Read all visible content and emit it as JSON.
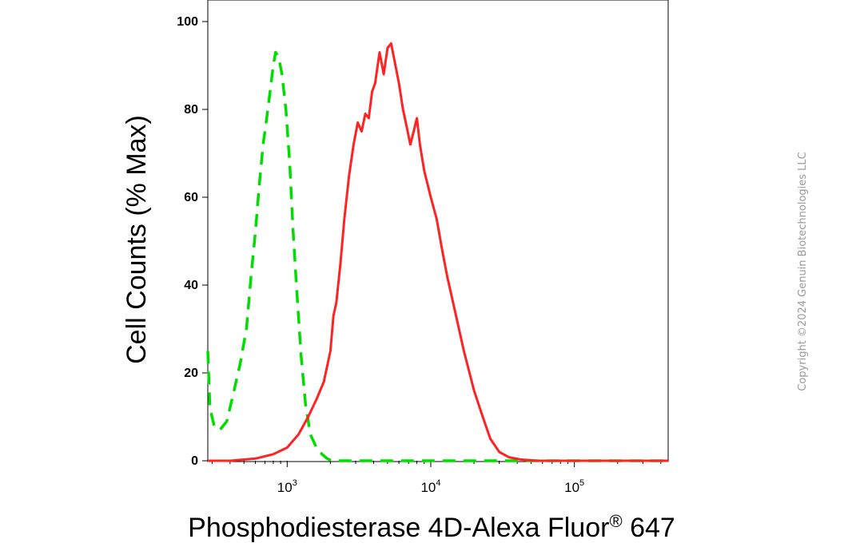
{
  "copyright": "Copyright ©2024 Genuin Biotechnologies LLC",
  "chart_data": {
    "type": "line",
    "xlabel_text": "Phosphodiesterase 4D-Alexa Fluor",
    "xlabel_sup": "®",
    "xlabel_suffix": " 647",
    "ylabel": "Cell Counts (% Max)",
    "xscale": "log",
    "xlim": [
      280,
      450000
    ],
    "ylim": [
      0,
      100
    ],
    "yticks": [
      0,
      20,
      40,
      60,
      80,
      100
    ],
    "xtick_labels": [
      {
        "value": 1000,
        "base": "10",
        "exp": "3"
      },
      {
        "value": 10000,
        "base": "10",
        "exp": "4"
      },
      {
        "value": 100000,
        "base": "10",
        "exp": "5"
      }
    ],
    "grid": false,
    "series": [
      {
        "color": "#00dd00",
        "style": "dashed",
        "x": [
          280,
          290,
          310,
          340,
          380,
          420,
          470,
          520,
          560,
          600,
          640,
          680,
          720,
          760,
          800,
          830,
          870,
          920,
          980,
          1040,
          1100,
          1170,
          1250,
          1340,
          1450,
          1600,
          1750,
          1900,
          2050,
          2300,
          3000,
          5000,
          10000,
          40000,
          450000
        ],
        "y": [
          25,
          12,
          8,
          7,
          9,
          15,
          22,
          30,
          42,
          52,
          63,
          72,
          78,
          84,
          90,
          93,
          92,
          88,
          80,
          68,
          52,
          38,
          24,
          13,
          6,
          3,
          1.5,
          0.5,
          0,
          0,
          0,
          0,
          0,
          0,
          0
        ]
      },
      {
        "color": "#ff2222",
        "style": "solid",
        "x": [
          280,
          400,
          600,
          800,
          1000,
          1200,
          1400,
          1600,
          1800,
          2000,
          2100,
          2200,
          2350,
          2500,
          2700,
          2900,
          3100,
          3300,
          3500,
          3700,
          3900,
          4100,
          4400,
          4700,
          5000,
          5300,
          5600,
          6000,
          6400,
          6800,
          7200,
          7600,
          8000,
          8400,
          9000,
          10000,
          11000,
          12000,
          13000,
          15000,
          17000,
          20000,
          23000,
          26000,
          30000,
          35000,
          42000,
          55000,
          100000,
          450000
        ],
        "y": [
          0,
          0,
          0.5,
          1.5,
          3,
          6,
          10,
          14,
          18,
          25,
          33,
          36,
          45,
          55,
          65,
          72,
          77,
          75,
          79,
          78,
          84,
          86,
          93,
          88,
          94,
          95,
          91,
          86,
          80,
          76,
          72,
          75,
          78,
          72,
          66,
          60,
          55,
          48,
          42,
          33,
          25,
          16,
          10,
          5,
          2,
          0.8,
          0.3,
          0,
          0,
          0
        ]
      }
    ]
  }
}
